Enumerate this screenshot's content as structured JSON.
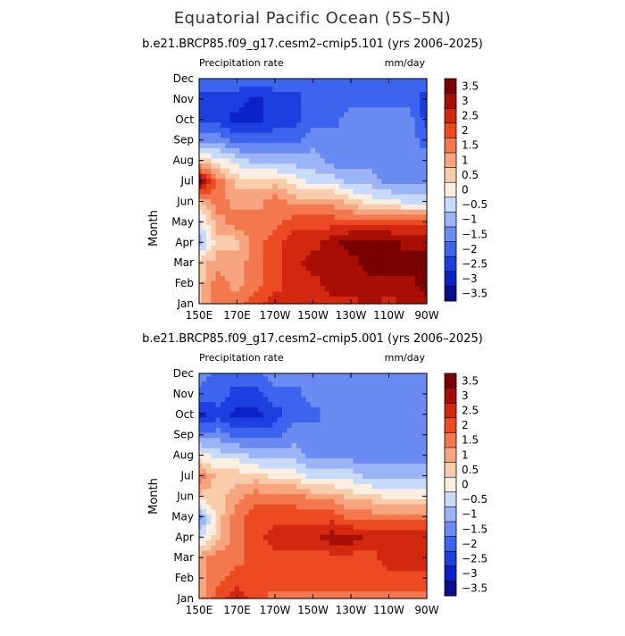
{
  "title": "Equatorial Pacific Ocean (5S–5N)",
  "chart_data": [
    {
      "type": "heatmap",
      "subtitle": "b.e21.BRCP85.f09_g17.cesm2–cmip5.101 (yrs 2006–2025)",
      "variable": "Precipitation rate",
      "units": "mm/day",
      "ylabel": "Month",
      "x_ticks": [
        "150E",
        "170E",
        "170W",
        "150W",
        "130W",
        "110W",
        "90W"
      ],
      "y_ticks": [
        "Jan",
        "Feb",
        "Mar",
        "Apr",
        "May",
        "Jun",
        "Jul",
        "Aug",
        "Sep",
        "Oct",
        "Nov",
        "Dec"
      ],
      "colorbar_levels": [
        "3.5",
        "3",
        "2.5",
        "2",
        "1.5",
        "1",
        "0.5",
        "0",
        "−0.5",
        "−1",
        "−1.5",
        "−2",
        "−2.5",
        "−3",
        "−3.5"
      ],
      "grid": [
        [
          0.5,
          1.5,
          1.5,
          2.0,
          2.5,
          2.5,
          2.5,
          2.5,
          2.5,
          3.0,
          2.5,
          3.0,
          3.0
        ],
        [
          0.5,
          1.5,
          1.0,
          1.5,
          2.0,
          2.5,
          2.5,
          3.0,
          3.0,
          3.0,
          3.0,
          3.0,
          3.5
        ],
        [
          0.5,
          1.0,
          1.0,
          1.5,
          2.0,
          2.5,
          3.0,
          3.0,
          3.0,
          3.5,
          3.5,
          3.5,
          3.5
        ],
        [
          -1.0,
          0.5,
          0.5,
          1.5,
          2.0,
          2.5,
          2.5,
          3.0,
          3.5,
          3.5,
          3.5,
          3.0,
          3.0
        ],
        [
          -0.5,
          1.0,
          1.5,
          1.5,
          1.5,
          2.0,
          2.0,
          2.0,
          2.0,
          2.0,
          2.0,
          2.0,
          2.0
        ],
        [
          0.5,
          1.5,
          1.0,
          1.0,
          1.5,
          1.0,
          1.0,
          1.0,
          0.5,
          0.0,
          0.0,
          -0.5,
          -0.5
        ],
        [
          3.5,
          1.5,
          0.5,
          0.5,
          0.5,
          0.0,
          -0.5,
          -0.5,
          -1.0,
          -1.0,
          -1.5,
          -1.5,
          -1.5
        ],
        [
          0.5,
          0.0,
          -0.5,
          -1.0,
          -1.0,
          -1.0,
          -1.0,
          -1.5,
          -1.5,
          -1.5,
          -1.5,
          -1.5,
          -1.5
        ],
        [
          -1.5,
          -1.5,
          -2.0,
          -2.0,
          -2.0,
          -2.0,
          -1.5,
          -1.5,
          -1.5,
          -1.5,
          -1.5,
          -1.5,
          -2.0
        ],
        [
          -2.5,
          -2.5,
          -3.0,
          -3.0,
          -2.5,
          -2.5,
          -2.0,
          -2.0,
          -1.5,
          -1.5,
          -1.5,
          -1.5,
          -2.5
        ],
        [
          -2.5,
          -2.5,
          -2.5,
          -3.0,
          -2.5,
          -2.5,
          -2.0,
          -2.0,
          -2.0,
          -2.0,
          -2.0,
          -2.0,
          -2.5
        ],
        [
          -2.0,
          -2.0,
          -2.0,
          -2.0,
          -2.0,
          -2.0,
          -2.0,
          -2.0,
          -2.0,
          -2.0,
          -2.0,
          -2.0,
          -2.0
        ]
      ]
    },
    {
      "type": "heatmap",
      "subtitle": "b.e21.BRCP85.f09_g17.cesm2–cmip5.001 (yrs 2006–2025)",
      "variable": "Precipitation rate",
      "units": "mm/day",
      "ylabel": "Month",
      "x_ticks": [
        "150E",
        "170E",
        "170W",
        "150W",
        "130W",
        "110W",
        "90W"
      ],
      "y_ticks": [
        "Jan",
        "Feb",
        "Mar",
        "Apr",
        "May",
        "Jun",
        "Jul",
        "Aug",
        "Sep",
        "Oct",
        "Nov",
        "Dec"
      ],
      "colorbar_levels": [
        "3.5",
        "3",
        "2.5",
        "2",
        "1.5",
        "1",
        "0.5",
        "0",
        "−0.5",
        "−1",
        "−1.5",
        "−2",
        "−2.5",
        "−3",
        "−3.5"
      ],
      "grid": [
        [
          1.0,
          2.0,
          2.5,
          2.0,
          1.5,
          1.5,
          1.5,
          1.5,
          1.5,
          1.5,
          1.5,
          1.5,
          1.5
        ],
        [
          1.0,
          1.5,
          2.0,
          2.0,
          2.0,
          2.0,
          2.0,
          2.0,
          2.0,
          2.0,
          2.0,
          2.0,
          2.0
        ],
        [
          1.0,
          1.5,
          1.5,
          2.0,
          2.0,
          2.0,
          2.0,
          2.0,
          2.0,
          2.0,
          2.5,
          2.5,
          2.5
        ],
        [
          -0.5,
          0.5,
          1.5,
          2.0,
          2.5,
          2.5,
          2.5,
          3.0,
          3.0,
          2.5,
          2.5,
          2.5,
          2.5
        ],
        [
          -1.5,
          0.5,
          1.5,
          2.0,
          2.0,
          2.0,
          2.0,
          2.0,
          1.5,
          1.5,
          1.5,
          1.5,
          1.5
        ],
        [
          0.5,
          0.5,
          1.0,
          1.5,
          1.5,
          1.5,
          1.0,
          1.0,
          0.5,
          0.5,
          0.0,
          0.0,
          0.0
        ],
        [
          1.5,
          0.5,
          0.5,
          0.5,
          0.0,
          0.0,
          -0.5,
          -0.5,
          -0.5,
          -1.0,
          -1.0,
          -1.0,
          -1.0
        ],
        [
          0.0,
          -0.5,
          -0.5,
          -1.0,
          -1.0,
          -1.0,
          -1.5,
          -1.5,
          -1.5,
          -1.5,
          -1.5,
          -1.5,
          -1.5
        ],
        [
          -1.5,
          -1.5,
          -2.0,
          -2.0,
          -2.0,
          -1.5,
          -1.5,
          -1.5,
          -1.5,
          -1.5,
          -1.5,
          -1.5,
          -1.5
        ],
        [
          -3.0,
          -2.5,
          -3.0,
          -3.0,
          -2.5,
          -2.0,
          -2.0,
          -1.5,
          -1.5,
          -1.5,
          -1.5,
          -1.5,
          -1.5
        ],
        [
          -2.0,
          -2.0,
          -2.5,
          -2.5,
          -2.0,
          -2.0,
          -1.5,
          -1.5,
          -1.5,
          -1.5,
          -1.5,
          -1.5,
          -1.5
        ],
        [
          -1.5,
          -2.0,
          -2.0,
          -2.0,
          -1.5,
          -1.5,
          -1.5,
          -1.5,
          -1.5,
          -1.5,
          -1.5,
          -1.5,
          -1.5
        ]
      ]
    }
  ]
}
